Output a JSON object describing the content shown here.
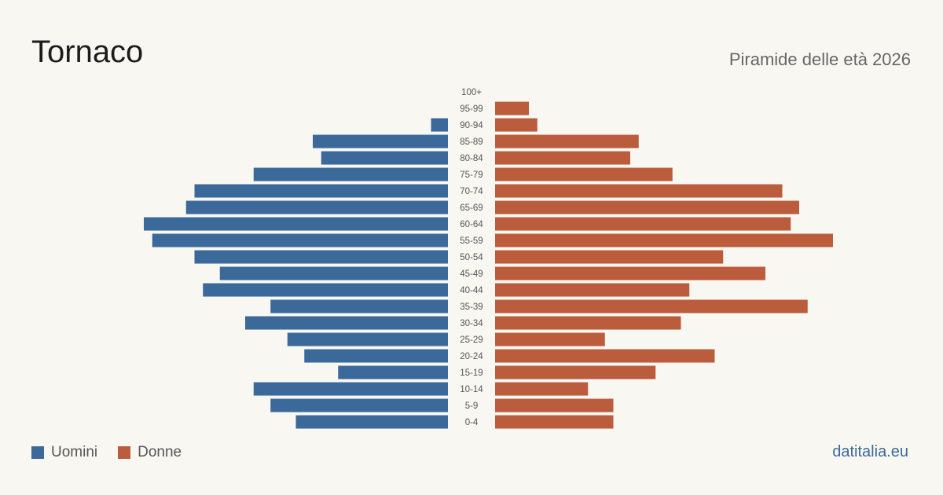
{
  "header": {
    "title": "Tornaco",
    "subtitle": "Piramide delle età 2026"
  },
  "legend": {
    "men_label": "Uomini",
    "women_label": "Donne"
  },
  "footer": {
    "site": "datitalia.eu"
  },
  "colors": {
    "men": "#3b6a9a",
    "women": "#bb5c3c",
    "background": "#f9f7f2"
  },
  "chart_data": {
    "type": "bar",
    "orientation": "horizontal-pyramid",
    "categories": [
      "100+",
      "95-99",
      "90-94",
      "85-89",
      "80-84",
      "75-79",
      "70-74",
      "65-69",
      "60-64",
      "55-59",
      "50-54",
      "45-49",
      "40-44",
      "35-39",
      "30-34",
      "25-29",
      "20-24",
      "15-19",
      "10-14",
      "5-9",
      "0-4"
    ],
    "series": [
      {
        "name": "Uomini",
        "values": [
          0,
          0,
          2,
          16,
          15,
          23,
          30,
          31,
          36,
          35,
          30,
          27,
          29,
          21,
          24,
          19,
          17,
          13,
          23,
          21,
          18
        ]
      },
      {
        "name": "Donne",
        "values": [
          0,
          4,
          5,
          17,
          16,
          21,
          34,
          36,
          35,
          40,
          27,
          32,
          23,
          37,
          22,
          13,
          26,
          19,
          11,
          14,
          14
        ]
      }
    ],
    "xlim": [
      0,
      40
    ],
    "grid": false,
    "legend_position": "bottom-left"
  }
}
